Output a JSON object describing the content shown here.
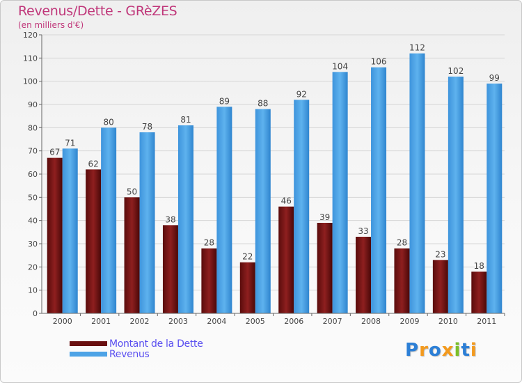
{
  "chart_data": {
    "type": "bar",
    "title": "Revenus/Dette - GRèZES",
    "subtitle": "(en milliers d'€)",
    "xlabel": "",
    "ylabel": "",
    "ylim": [
      0,
      120
    ],
    "ytick_step": 10,
    "grid": true,
    "categories": [
      "2000",
      "2001",
      "2002",
      "2003",
      "2004",
      "2005",
      "2006",
      "2007",
      "2008",
      "2009",
      "2010",
      "2011"
    ],
    "series": [
      {
        "name": "Montant de la Dette",
        "color": "#7a1414",
        "values": [
          67,
          62,
          50,
          38,
          28,
          22,
          46,
          39,
          33,
          28,
          23,
          18
        ]
      },
      {
        "name": "Revenus",
        "color": "#4da3e6",
        "values": [
          71,
          80,
          78,
          81,
          89,
          88,
          92,
          104,
          106,
          112,
          102,
          99
        ]
      }
    ],
    "legend_position": "bottom-left"
  },
  "logo": {
    "letters": [
      "P",
      "r",
      "o",
      "x",
      "i",
      "t",
      "i"
    ],
    "colors": [
      "#2c7fd6",
      "#f39a1e",
      "#2c7fd6",
      "#f39a1e",
      "#7bbf2a",
      "#2c7fd6",
      "#f39a1e"
    ]
  }
}
